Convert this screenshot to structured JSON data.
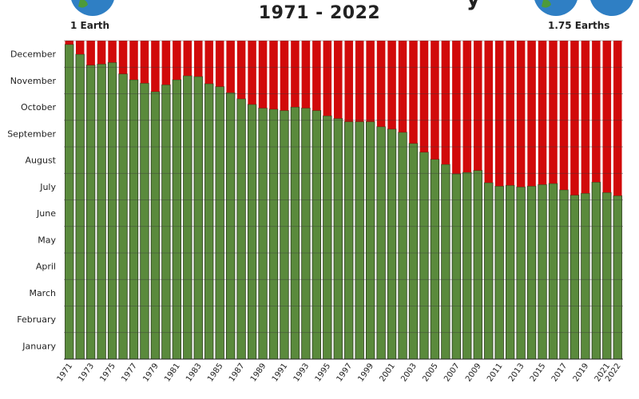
{
  "header": {
    "title_fragment": "y",
    "subtitle": "1971 - 2022",
    "left_label": "1 Earth",
    "right_label": "1.75 Earths",
    "globe_icon": "earth-globe-icon"
  },
  "colors": {
    "biocapacity": "#5a8a3c",
    "overshoot": "#d10a0a",
    "bar_border": "#2c3d1c",
    "gridline": "#3a3a3a"
  },
  "chart_data": {
    "type": "bar",
    "stacked": true,
    "title": "1971 - 2022",
    "xlabel": "",
    "ylabel": "",
    "y_tick_labels": [
      "January",
      "February",
      "March",
      "April",
      "May",
      "June",
      "July",
      "August",
      "September",
      "October",
      "November",
      "December"
    ],
    "ylim": [
      0,
      12
    ],
    "grid": true,
    "categories": [
      1971,
      1972,
      1973,
      1974,
      1975,
      1976,
      1977,
      1978,
      1979,
      1980,
      1981,
      1982,
      1983,
      1984,
      1985,
      1986,
      1987,
      1988,
      1989,
      1990,
      1991,
      1992,
      1993,
      1994,
      1995,
      1996,
      1997,
      1998,
      1999,
      2000,
      2001,
      2002,
      2003,
      2004,
      2005,
      2006,
      2007,
      2008,
      2009,
      2010,
      2011,
      2012,
      2013,
      2014,
      2015,
      2016,
      2017,
      2018,
      2019,
      2020,
      2021,
      2022
    ],
    "x_tick_labels": [
      "1971",
      "1973",
      "1975",
      "1977",
      "1979",
      "1981",
      "1983",
      "1985",
      "1987",
      "1989",
      "1991",
      "1993",
      "1995",
      "1997",
      "1999",
      "2001",
      "2003",
      "2005",
      "2007",
      "2009",
      "2011",
      "2013",
      "2015",
      "2017",
      "2019",
      "2021",
      "2022"
    ],
    "series": [
      {
        "values": [
          11.86,
          11.49,
          11.08,
          11.12,
          11.18,
          10.75,
          10.53,
          10.4,
          10.08,
          10.34,
          10.53,
          10.68,
          10.65,
          10.38,
          10.27,
          10.04,
          9.81,
          9.6,
          9.46,
          9.42,
          9.37,
          9.5,
          9.46,
          9.37,
          9.17,
          9.07,
          8.95,
          8.95,
          8.95,
          8.76,
          8.67,
          8.55,
          8.13,
          7.8,
          7.53,
          7.34,
          6.98,
          7.04,
          7.11,
          6.65,
          6.52,
          6.55,
          6.49,
          6.52,
          6.58,
          6.62,
          6.38,
          6.18,
          6.25,
          6.67,
          6.28,
          6.16
        ]
      },
      {
        "values": [
          0.14,
          0.51,
          0.92,
          0.88,
          0.82,
          1.25,
          1.47,
          1.6,
          1.92,
          1.66,
          1.47,
          1.32,
          1.35,
          1.62,
          1.73,
          1.96,
          2.19,
          2.4,
          2.54,
          2.58,
          2.63,
          2.5,
          2.54,
          2.63,
          2.83,
          2.93,
          3.05,
          3.05,
          3.05,
          3.24,
          3.33,
          3.45,
          3.87,
          4.2,
          4.47,
          4.66,
          5.02,
          4.96,
          4.89,
          5.35,
          5.48,
          5.45,
          5.51,
          5.48,
          5.42,
          5.38,
          5.62,
          5.82,
          5.75,
          5.33,
          5.72,
          5.84
        ]
      }
    ]
  }
}
